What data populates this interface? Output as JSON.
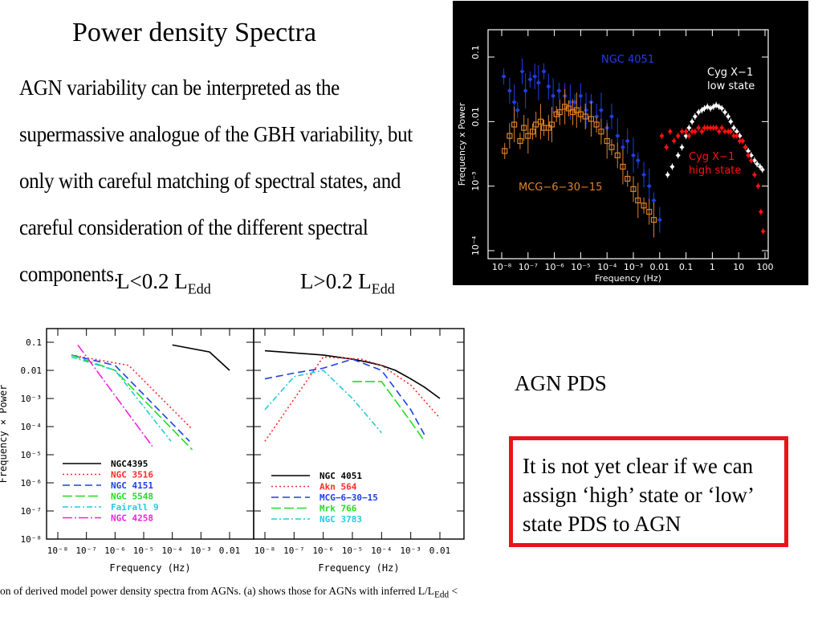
{
  "slide": {
    "title": "Power density Spectra",
    "quote": "AGN variability can be interpreted as the supermassive analogue of the GBH variability, but only with careful matching of spectral states, and careful consideration of the different spectral components.",
    "low_label_main": "L<0.2 L",
    "low_label_sub": "Edd",
    "high_label_main": "L>0.2 L",
    "high_label_sub": "Edd",
    "agn_pds_label": "AGN PDS",
    "note": "It is not yet clear if we can assign ‘high’ state or ‘low’ state PDS to AGN",
    "caption": "on of derived model power density spectra from AGNs. (a) shows those for AGNs with inferred L/L",
    "caption_sub": "Edd",
    "caption_tail": " <",
    "colors": {
      "note_border": "#e8141b",
      "bh_background": "#000000",
      "orange": "#e0822a",
      "blue": "#1f3ee6",
      "red": "#ff1111",
      "white": "#ffffff"
    }
  },
  "chart_data": [
    {
      "type": "scatter",
      "xscale": "log",
      "yscale": "log",
      "xlabel": "Frequency (Hz)",
      "ylabel": "Frequency x Power",
      "xlim": [
        5e-09,
        150
      ],
      "ylim": [
        5e-05,
        0.3
      ],
      "xticks": [
        "10⁻⁸",
        "10⁻⁷",
        "10⁻⁶",
        "10⁻⁵",
        "10⁻⁴",
        "10⁻³",
        "0.01",
        "0.1",
        "1",
        "10",
        "100"
      ],
      "yticks": [
        "0.1",
        "0.01",
        "10⁻³",
        "10⁻⁴"
      ],
      "series": [
        {
          "name": "NGC 4051",
          "color": "#1f3ee6",
          "marker": "diamond",
          "x": [
            1.2e-08,
            2e-08,
            3e-08,
            4e-08,
            6e-08,
            8e-08,
            1.2e-07,
            1.8e-07,
            2.5e-07,
            4e-07,
            6e-07,
            9e-07,
            1.5e-06,
            2.5e-06,
            4e-06,
            6e-06,
            1e-05,
            1.6e-05,
            2.5e-05,
            4e-05,
            6e-05,
            0.0001,
            0.00015,
            0.00025,
            0.0004,
            0.0006,
            0.001,
            0.0015,
            0.0025,
            0.004,
            0.006,
            0.01
          ],
          "y": [
            0.05,
            0.03,
            0.02,
            0.015,
            0.06,
            0.03,
            0.045,
            0.05,
            0.04,
            0.06,
            0.035,
            0.025,
            0.03,
            0.025,
            0.02,
            0.02,
            0.025,
            0.015,
            0.02,
            0.012,
            0.015,
            0.008,
            0.012,
            0.006,
            0.004,
            0.005,
            0.003,
            0.0025,
            0.0015,
            0.001,
            0.0006,
            0.0003
          ]
        },
        {
          "name": "MCG−6−30−15",
          "color": "#e0822a",
          "marker": "square",
          "x": [
            1.3e-08,
            2e-08,
            3e-08,
            5e-08,
            7e-08,
            1e-07,
            1.5e-07,
            2e-07,
            3e-07,
            4e-07,
            6e-07,
            8e-07,
            1.2e-06,
            1.6e-06,
            2.5e-06,
            3.5e-06,
            5e-06,
            7e-06,
            1e-05,
            1.5e-05,
            2.5e-05,
            4e-05,
            6e-05,
            0.0001,
            0.00015,
            0.00025,
            0.0004,
            0.0006,
            0.001,
            0.0015,
            0.0025,
            0.004,
            0.006
          ],
          "y": [
            0.0035,
            0.006,
            0.009,
            0.005,
            0.008,
            0.006,
            0.007,
            0.009,
            0.01,
            0.008,
            0.008,
            0.009,
            0.013,
            0.014,
            0.017,
            0.016,
            0.014,
            0.015,
            0.013,
            0.012,
            0.011,
            0.009,
            0.007,
            0.005,
            0.004,
            0.003,
            0.002,
            0.0013,
            0.0009,
            0.0006,
            0.0005,
            0.0004,
            0.0003
          ]
        },
        {
          "name": "Cyg X−1 low state",
          "color": "#ffffff",
          "marker": "diamond",
          "x": [
            0.02,
            0.03,
            0.05,
            0.07,
            0.1,
            0.13,
            0.17,
            0.22,
            0.3,
            0.4,
            0.5,
            0.65,
            0.85,
            1.1,
            1.4,
            1.8,
            2.3,
            3,
            4,
            5,
            6.5,
            8.5,
            11,
            14,
            18,
            23,
            30,
            40,
            50,
            65,
            80
          ],
          "y": [
            0.0015,
            0.002,
            0.003,
            0.004,
            0.006,
            0.008,
            0.01,
            0.012,
            0.014,
            0.015,
            0.016,
            0.017,
            0.016,
            0.017,
            0.018,
            0.017,
            0.016,
            0.014,
            0.012,
            0.01,
            0.008,
            0.007,
            0.006,
            0.005,
            0.004,
            0.0035,
            0.003,
            0.0025,
            0.0022,
            0.002,
            0.0018
          ]
        },
        {
          "name": "Cyg X−1 high state",
          "color": "#ff1111",
          "marker": "diamond",
          "x": [
            0.012,
            0.018,
            0.025,
            0.035,
            0.05,
            0.07,
            0.1,
            0.13,
            0.17,
            0.22,
            0.3,
            0.4,
            0.5,
            0.65,
            0.85,
            1.1,
            1.4,
            1.8,
            2.3,
            3,
            4,
            5,
            6.5,
            8.5,
            11,
            14,
            18,
            23,
            30,
            40,
            55,
            70,
            85
          ],
          "y": [
            0.006,
            0.004,
            0.007,
            0.005,
            0.006,
            0.007,
            0.007,
            0.006,
            0.007,
            0.007,
            0.008,
            0.007,
            0.008,
            0.008,
            0.008,
            0.008,
            0.008,
            0.007,
            0.008,
            0.007,
            0.007,
            0.007,
            0.006,
            0.006,
            0.005,
            0.005,
            0.004,
            0.003,
            0.0025,
            0.0015,
            0.001,
            0.0004,
            0.0002
          ]
        }
      ],
      "annotations": [
        "NGC 4051",
        "Cyg X−1",
        "low state",
        "MCG−6−30−15",
        "Cyg X−1",
        "high state"
      ]
    },
    {
      "type": "line",
      "panel": "a",
      "xscale": "log",
      "yscale": "log",
      "xlabel": "Frequency (Hz)",
      "ylabel": "Frequency × Power",
      "xlim": [
        1e-08,
        0.01
      ],
      "ylim": [
        1e-08,
        0.15
      ],
      "xticks": [
        "10⁻⁸",
        "10⁻⁷",
        "10⁻⁶",
        "10⁻⁵",
        "10⁻⁴",
        "10⁻³",
        "0.01"
      ],
      "yticks": [
        "0.1",
        "0.01",
        "10⁻³",
        "10⁻⁴",
        "10⁻⁵",
        "10⁻⁶",
        "10⁻⁷",
        "10⁻⁸"
      ],
      "series": [
        {
          "name": "NGC4395",
          "color": "#000000",
          "dash": "none",
          "x": [
            0.0001,
            0.002,
            0.01
          ],
          "y": [
            0.08,
            0.045,
            0.01
          ]
        },
        {
          "name": "NGC 3516",
          "color": "#ff2a2a",
          "dash": "2,3",
          "x": [
            3e-08,
            3e-06,
            0.0005
          ],
          "y": [
            0.035,
            0.015,
            8e-05
          ]
        },
        {
          "name": "NGC 4151",
          "color": "#1f3ee6",
          "dash": "9,5",
          "x": [
            3e-08,
            1e-06,
            0.0004
          ],
          "y": [
            0.035,
            0.015,
            3e-05
          ]
        },
        {
          "name": "NGC 5548",
          "color": "#22dd22",
          "dash": "12,4",
          "x": [
            3e-08,
            1e-06,
            0.0005
          ],
          "y": [
            0.035,
            0.01,
            1.5e-05
          ]
        },
        {
          "name": "Fairall 9",
          "color": "#22ccdd",
          "dash": "7,3,2,3",
          "x": [
            3e-08,
            1e-06,
            9e-05
          ],
          "y": [
            0.03,
            0.01,
            3e-05
          ]
        },
        {
          "name": "NGC 4258",
          "color": "#ee22dd",
          "dash": "12,3,2,3",
          "x": [
            5e-08,
            2e-05
          ],
          "y": [
            0.08,
            2e-05
          ]
        }
      ]
    },
    {
      "type": "line",
      "panel": "b",
      "xscale": "log",
      "yscale": "log",
      "xlabel": "Frequency (Hz)",
      "xlim": [
        1e-08,
        0.01
      ],
      "ylim": [
        1e-08,
        0.15
      ],
      "xticks": [
        "10⁻⁸",
        "10⁻⁷",
        "10⁻⁶",
        "10⁻⁵",
        "10⁻⁴",
        "10⁻³",
        "0.01"
      ],
      "series": [
        {
          "name": "NGC 4051",
          "color": "#000000",
          "dash": "none",
          "x": [
            1e-08,
            1e-06,
            1e-05,
            3e-05,
            0.0001,
            0.0003,
            0.001,
            0.003,
            0.01
          ],
          "y": [
            0.05,
            0.035,
            0.025,
            0.02,
            0.015,
            0.01,
            0.005,
            0.0025,
            0.001
          ]
        },
        {
          "name": "Akn 564",
          "color": "#ff2a2a",
          "dash": "2,3",
          "x": [
            1e-08,
            1e-06,
            2e-05,
            0.0001,
            0.001,
            0.01
          ],
          "y": [
            3e-05,
            0.03,
            0.025,
            0.015,
            0.003,
            0.0002
          ]
        },
        {
          "name": "MCG−6−30−15",
          "color": "#1f3ee6",
          "dash": "9,5",
          "x": [
            1e-08,
            1e-07,
            1e-06,
            1e-05,
            0.0001,
            0.001,
            0.003
          ],
          "y": [
            0.005,
            0.008,
            0.012,
            0.025,
            0.01,
            0.0004,
            5e-05
          ]
        },
        {
          "name": "Mrk 766",
          "color": "#22dd22",
          "dash": "12,4",
          "x": [
            1e-05,
            0.0001,
            0.001,
            0.003
          ],
          "y": [
            0.004,
            0.004,
            0.00015,
            3e-05
          ]
        },
        {
          "name": "NGC 3783",
          "color": "#22ccdd",
          "dash": "7,3,2,3",
          "x": [
            1e-08,
            1e-07,
            1e-06,
            1e-05,
            0.0001
          ],
          "y": [
            0.0004,
            0.006,
            0.01,
            0.001,
            6e-05
          ]
        }
      ]
    }
  ]
}
